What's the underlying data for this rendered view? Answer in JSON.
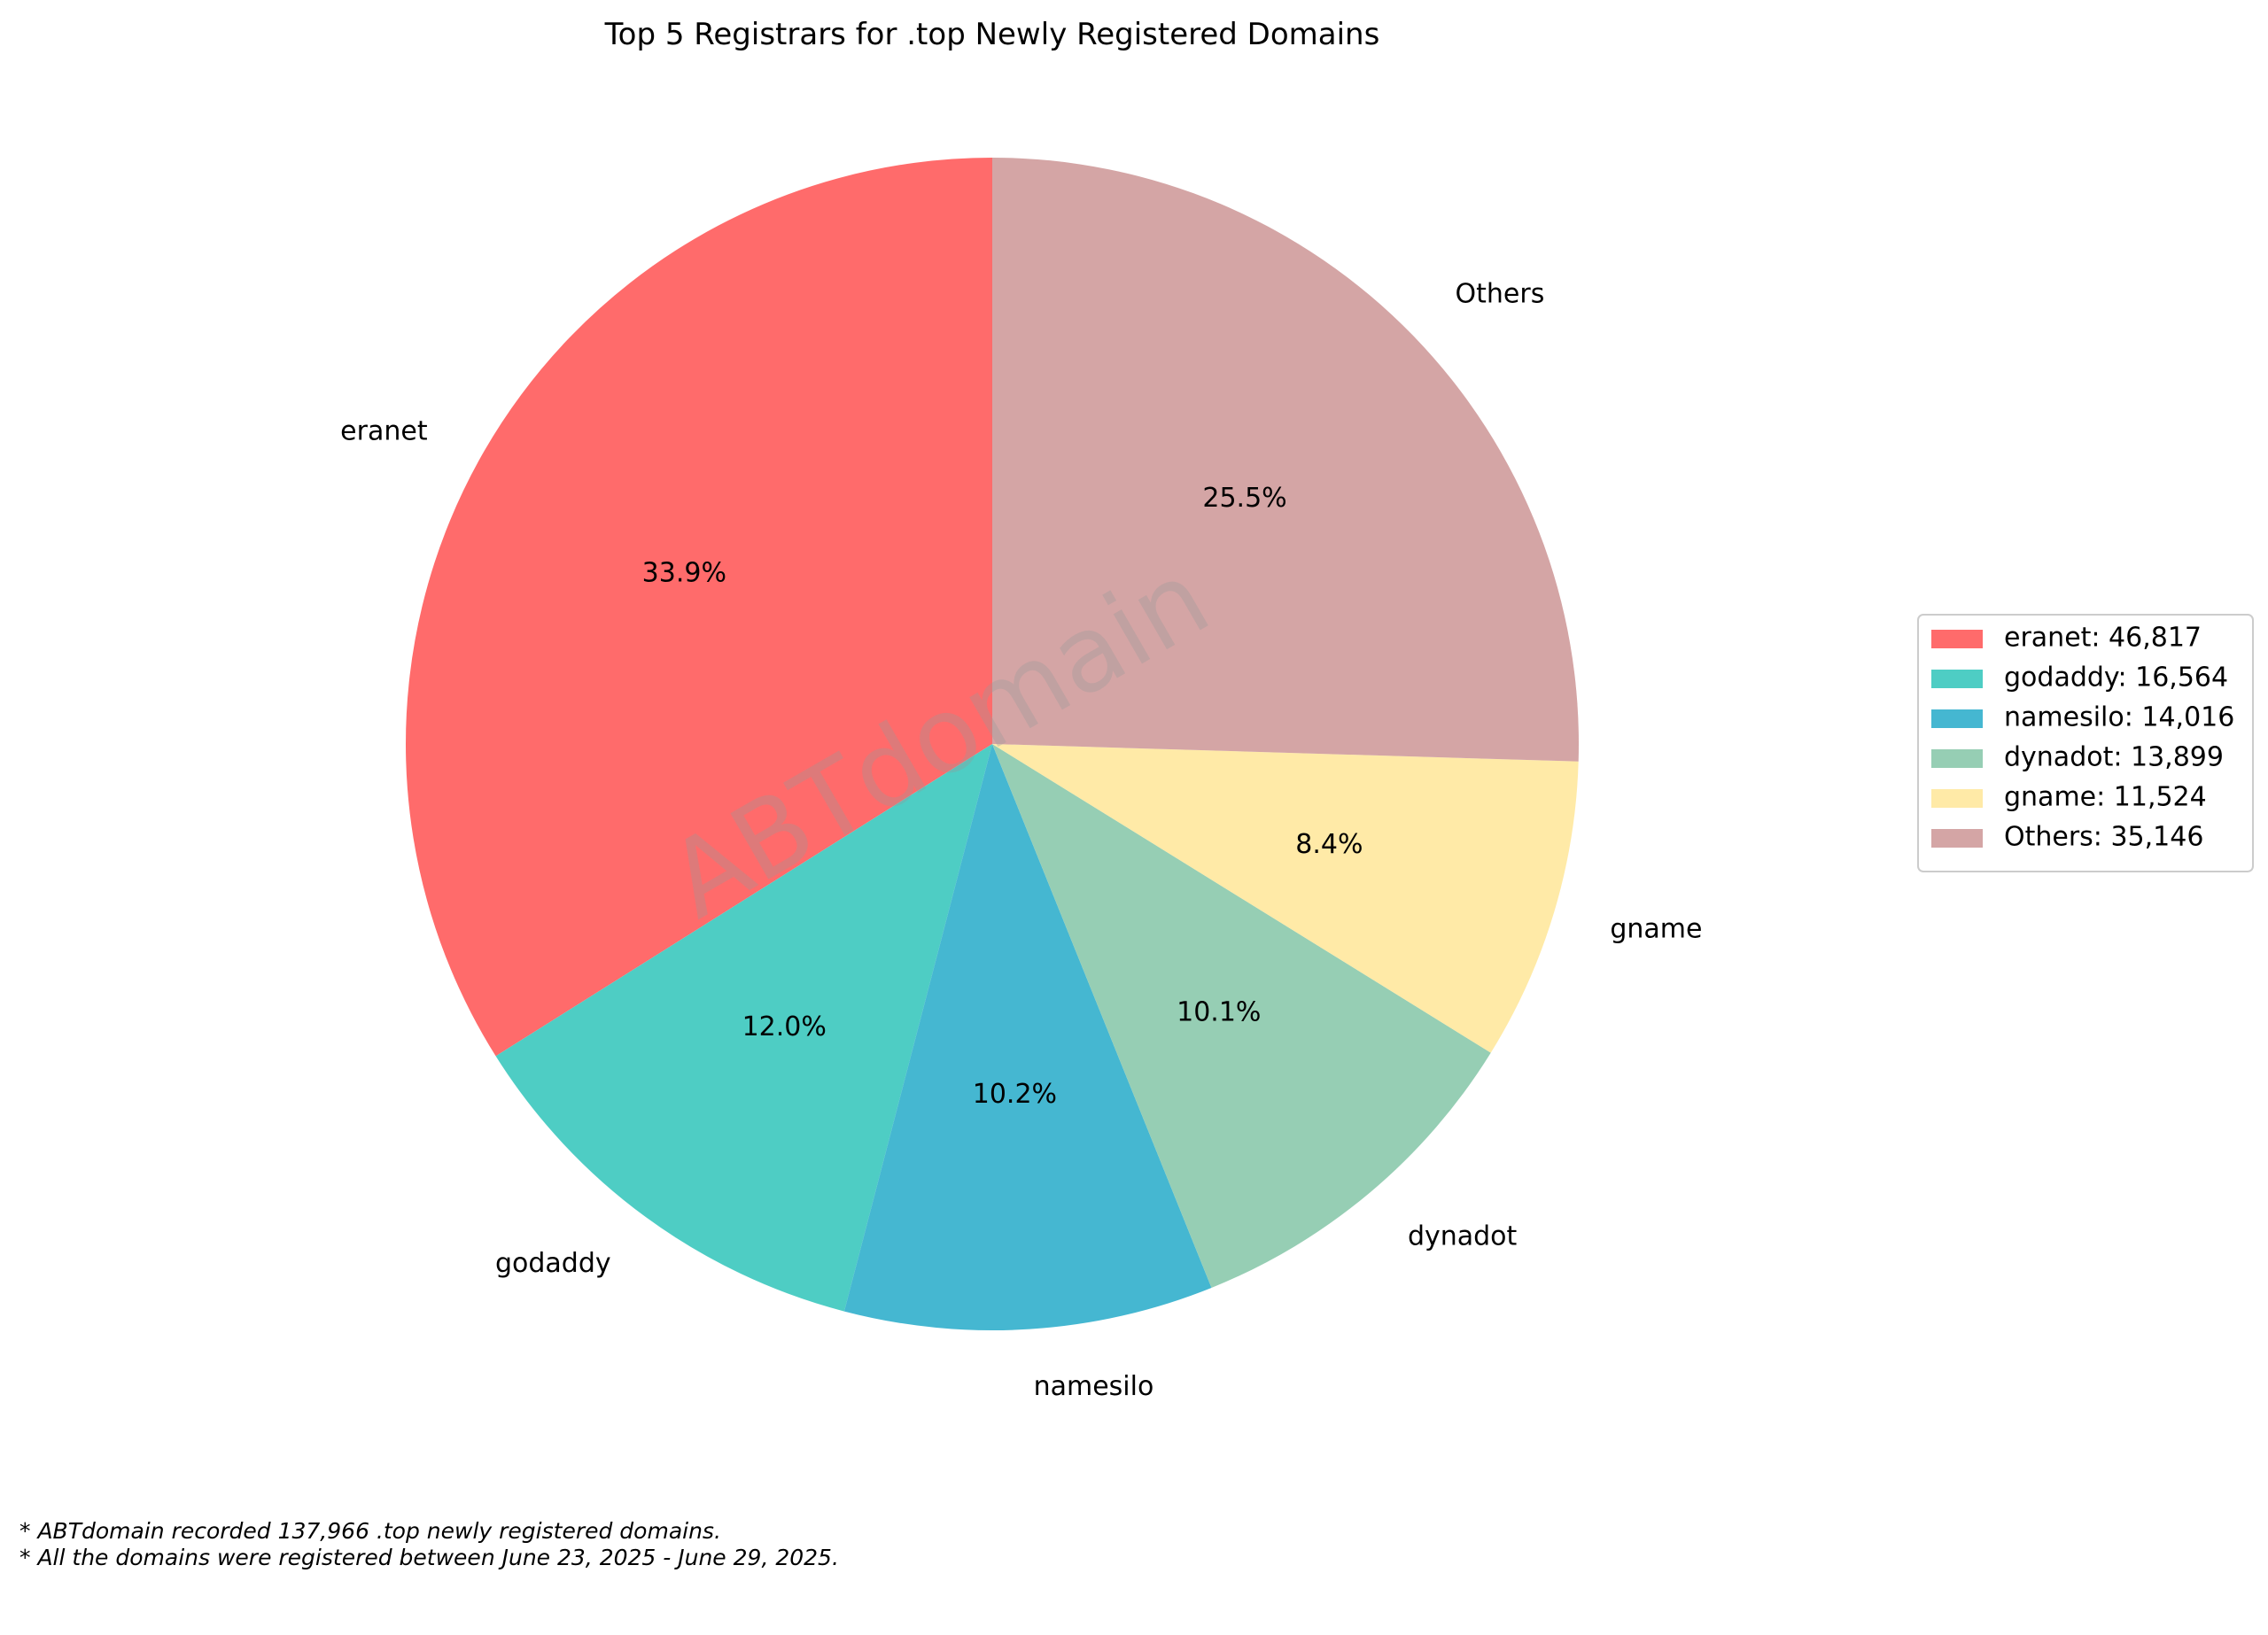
{
  "chart_data": {
    "type": "pie",
    "title": "Top 5 Registrars for .top Newly Registered Domains",
    "watermark": "ABTdomain",
    "slices": [
      {
        "label": "eranet",
        "value": 46817,
        "percent_label": "33.9%",
        "legend": "eranet: 46,817",
        "color": "#ff6b6b"
      },
      {
        "label": "godaddy",
        "value": 16564,
        "percent_label": "12.0%",
        "legend": "godaddy: 16,564",
        "color": "#4ecdc4"
      },
      {
        "label": "namesilo",
        "value": 14016,
        "percent_label": "10.2%",
        "legend": "namesilo: 14,016",
        "color": "#45b7d1"
      },
      {
        "label": "dynadot",
        "value": 13899,
        "percent_label": "10.1%",
        "legend": "dynadot: 13,899",
        "color": "#96ceb4"
      },
      {
        "label": "gname",
        "value": 11524,
        "percent_label": "8.4%",
        "legend": "gname: 11,524",
        "color": "#ffeaa7"
      },
      {
        "label": "Others",
        "value": 35146,
        "percent_label": "25.5%",
        "legend": "Others: 35,146",
        "color": "#d4a5a5"
      }
    ],
    "legend_position": "right"
  },
  "footnotes": [
    "* ABTdomain recorded 137,966 .top newly registered domains.",
    "* All the domains were registered between June 23, 2025 - June 29, 2025."
  ]
}
